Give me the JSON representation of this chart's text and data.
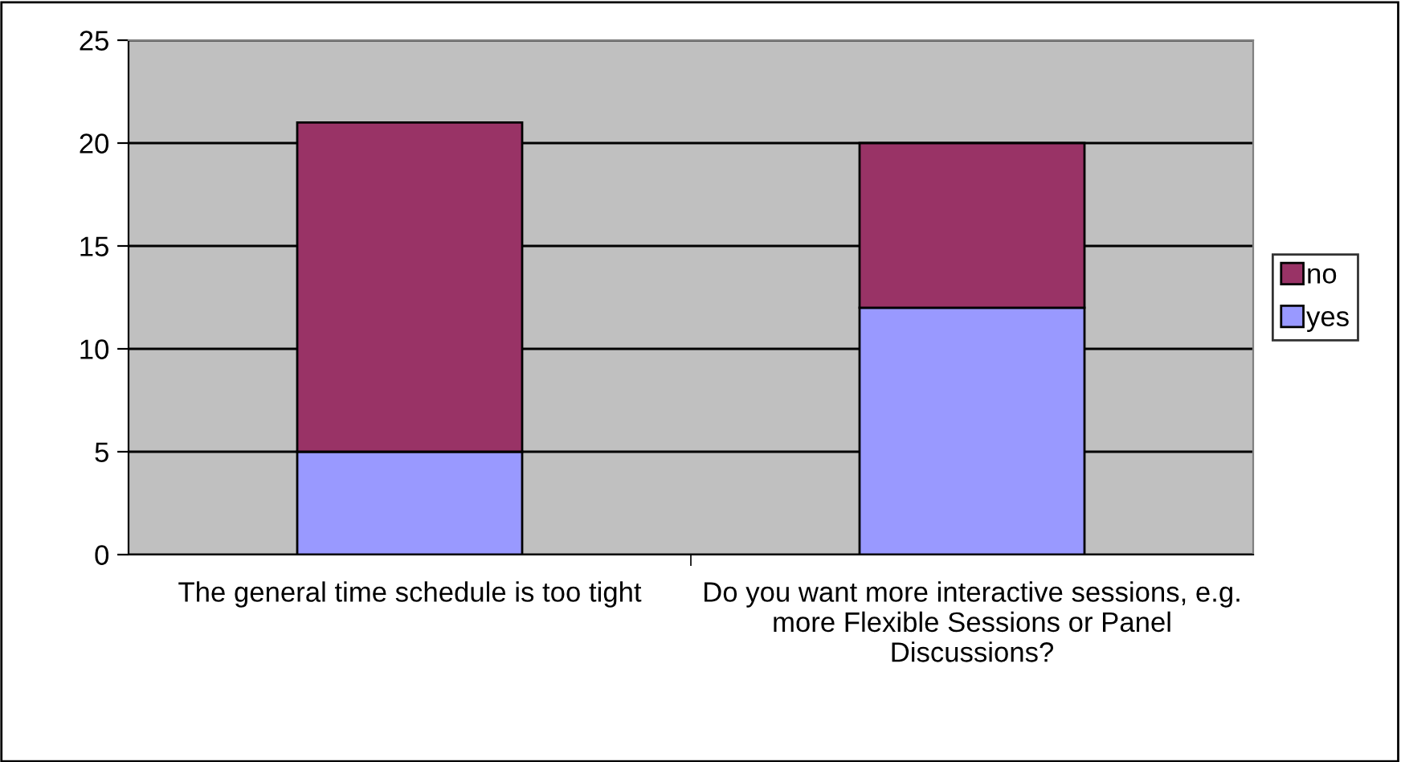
{
  "chart_data": {
    "type": "bar",
    "stacked": true,
    "categories": [
      "The general time schedule is too tight",
      "Do you want more interactive sessions, e.g. more Flexible Sessions or Panel Discussions?"
    ],
    "series": [
      {
        "name": "yes",
        "color": "#9999ff",
        "values": [
          5,
          12
        ]
      },
      {
        "name": "no",
        "color": "#993366",
        "values": [
          16,
          8
        ]
      }
    ],
    "ylim": [
      0,
      25
    ],
    "yticks": [
      0,
      5,
      10,
      15,
      20,
      25
    ],
    "grid": "y",
    "legend": "right"
  }
}
